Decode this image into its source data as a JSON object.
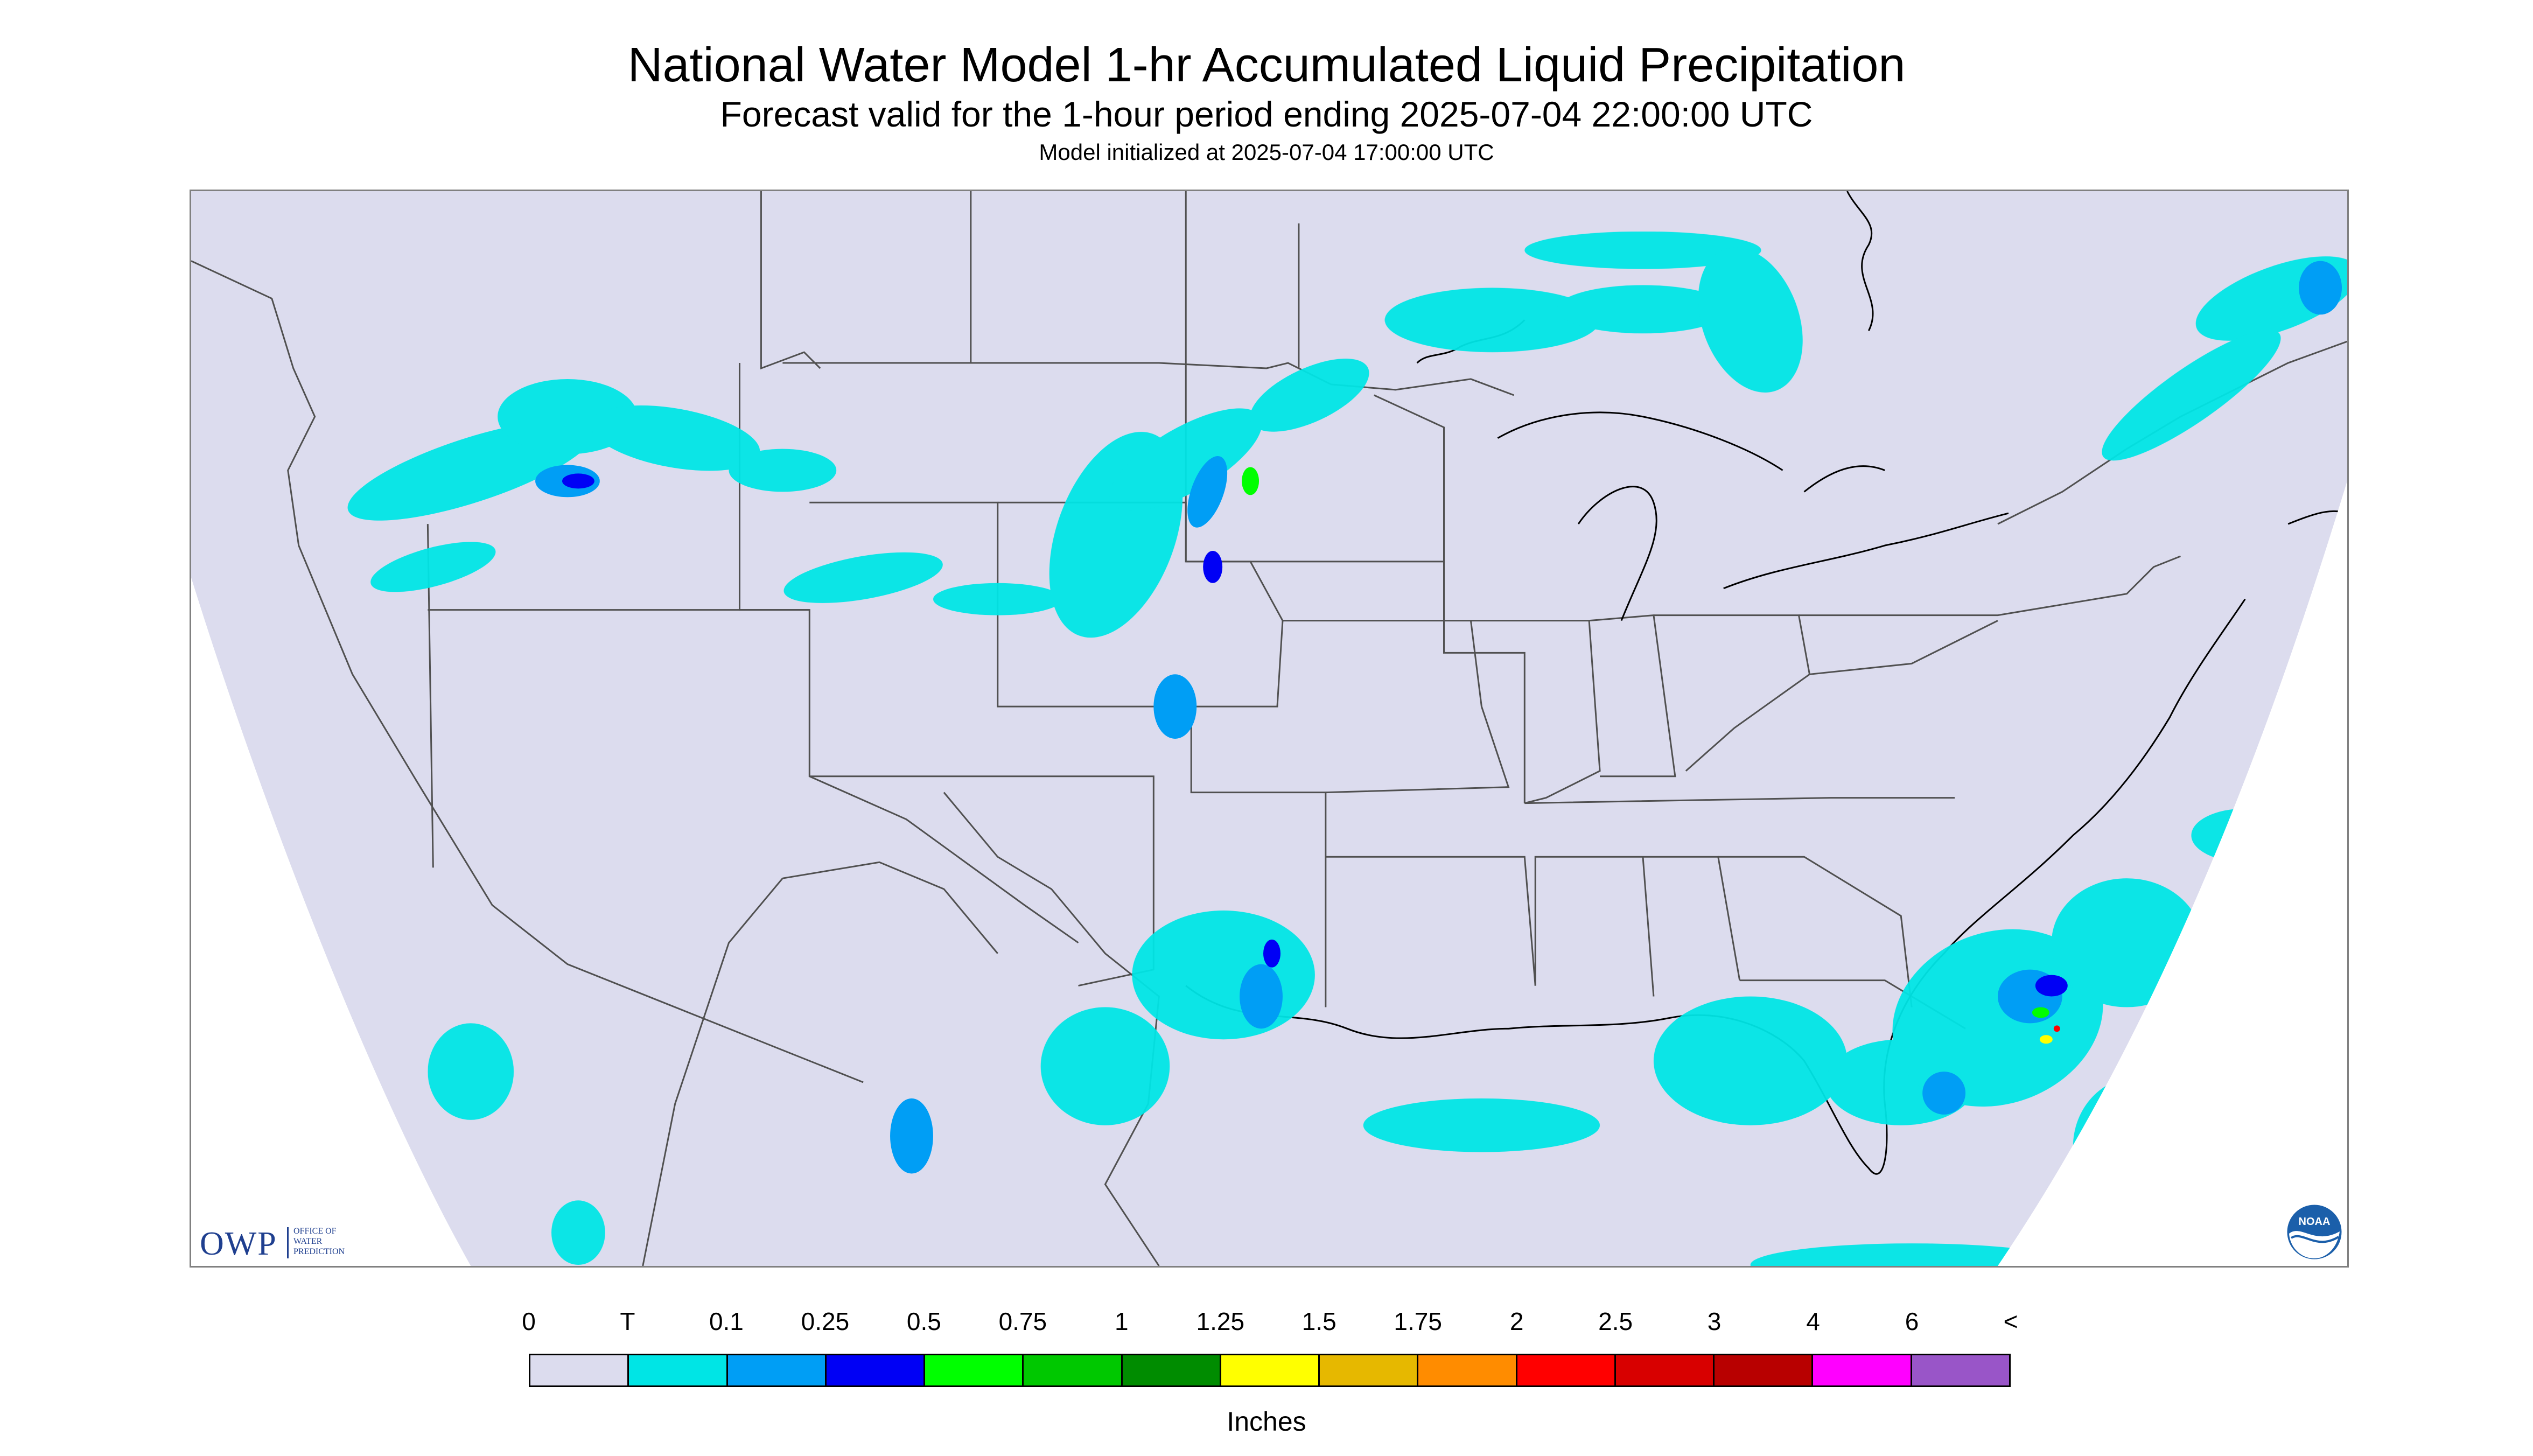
{
  "title": "National Water Model 1-hr Accumulated Liquid Precipitation",
  "subtitle": "Forecast valid for the 1-hour period ending 2025-07-04 22:00:00 UTC",
  "init_text": "Model initialized at 2025-07-04 17:00:00 UTC",
  "map": {
    "region": "Continental United States",
    "background_color": "#dcdcee",
    "outside_domain_color": "#ffffff",
    "border_color": "#404040"
  },
  "logos": {
    "owp": {
      "abbr": "OWP",
      "lines": [
        "OFFICE OF",
        "WATER",
        "PREDICTION"
      ]
    },
    "noaa": {
      "text": "NOAA"
    }
  },
  "legend": {
    "labels": [
      "0",
      "T",
      "0.1",
      "0.25",
      "0.5",
      "0.75",
      "1",
      "1.25",
      "1.5",
      "1.75",
      "2",
      "2.5",
      "3",
      "4",
      "6",
      "<"
    ],
    "colors": [
      "#dcdcee",
      "#00e5e5",
      "#009ef5",
      "#0000f5",
      "#00ff00",
      "#00c800",
      "#008c00",
      "#ffff00",
      "#e6b800",
      "#ff8c00",
      "#ff0000",
      "#d80000",
      "#b80000",
      "#ff00ff",
      "#9955c8"
    ],
    "units": "Inches"
  }
}
